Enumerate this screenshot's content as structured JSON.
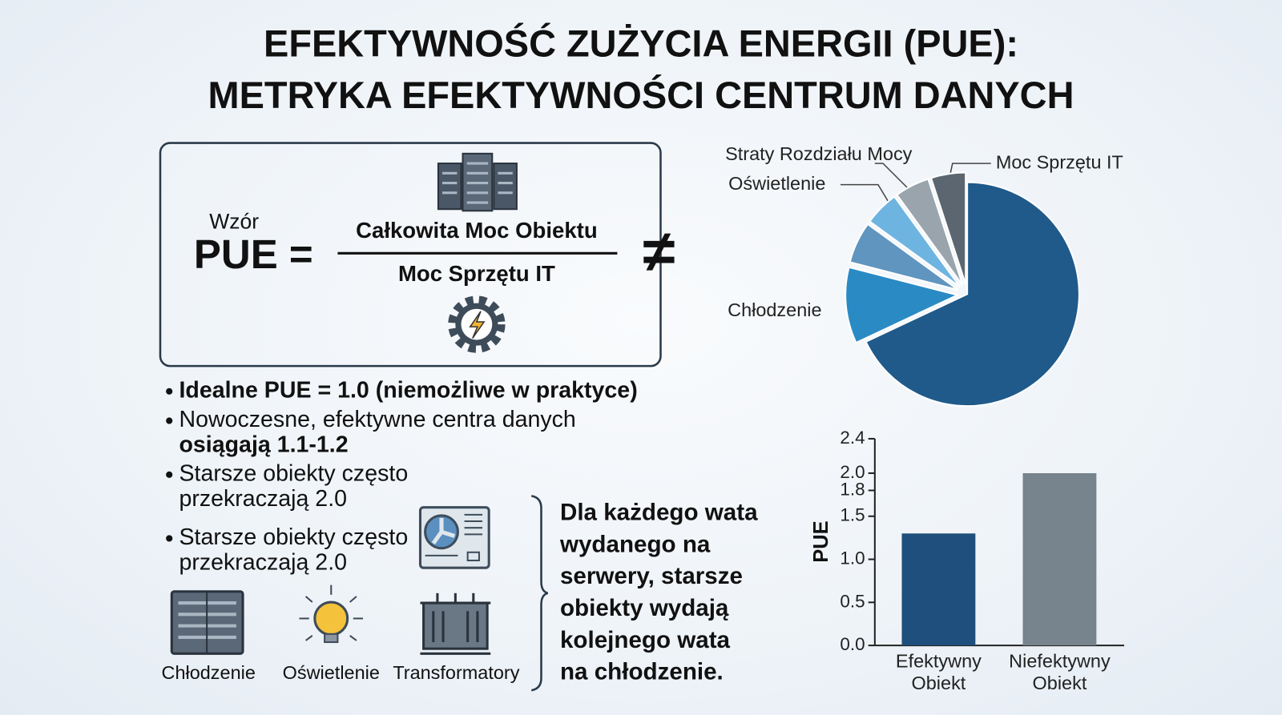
{
  "title": [
    "EFEKTYWNOŚĆ ZUŻYCIA ENERGII (PUE):",
    "METRYKA EFEKTYWNOŚCI CENTRUM DANYCH"
  ],
  "formula": {
    "label": "Wzór",
    "lhs": "PUE =",
    "numerator": "Całkowita Moc Obiektu",
    "denominator": "Moc Sprzętu IT",
    "symbol": "≠"
  },
  "bullets": [
    [
      "Idealne PUE = 1.0 (niemożliwe w praktyce)"
    ],
    [
      "Nowoczesne, efektywne centra danych",
      "osiągają 1.1-1.2"
    ],
    [
      "Starsze obiekty często",
      "przekraczają 2.0"
    ],
    [
      "Starsze obiekty często",
      "przekraczają 2.0"
    ]
  ],
  "icons": [
    "Chłodzenie",
    "Oświetlenie",
    "Transformatory"
  ],
  "callout": [
    "Dla każdego wata",
    "wydanego na",
    "serwery, starsze",
    "obiekty wydają",
    "kolejnego wata",
    "na chłodzenie."
  ],
  "chart_data": [
    {
      "type": "pie",
      "categories": [
        null,
        "Chłodzenie",
        null,
        "Oświetlenie",
        "Straty Rozdziału Mocy",
        "Moc Sprzętu IT"
      ],
      "values": [
        68,
        11,
        6,
        5,
        5,
        5
      ],
      "colors": [
        "#1f5a8a",
        "#2a8ac4",
        "#5f95bf",
        "#6eb4e0",
        "#9aa4ad",
        "#5c6670"
      ]
    },
    {
      "type": "bar",
      "ylabel": "PUE",
      "categories": [
        "Efektywny Obiekt",
        "Niefektywny Obiekt"
      ],
      "values": [
        1.3,
        2.0
      ],
      "colors": [
        "#1f4f7c",
        "#77838d"
      ],
      "ylim": [
        0,
        2.4
      ],
      "yticks": [
        {
          "value": 0,
          "label": "0.0"
        },
        0.5,
        {
          "value": 1,
          "label": "1.0"
        },
        1.5,
        1.8,
        {
          "value": 2,
          "label": "2.0"
        },
        2.4
      ]
    }
  ]
}
